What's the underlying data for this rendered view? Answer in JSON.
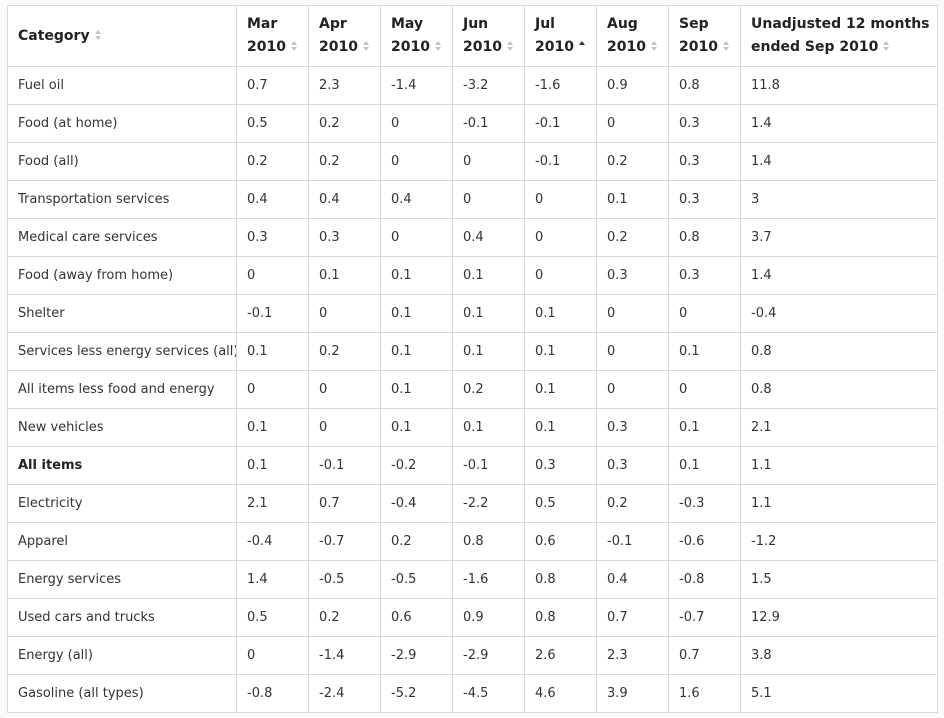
{
  "table": {
    "headers": [
      {
        "line1": "Category",
        "line2": "",
        "sort": "none"
      },
      {
        "line1": "Mar",
        "line2": "2010",
        "sort": "none"
      },
      {
        "line1": "Apr",
        "line2": "2010",
        "sort": "none"
      },
      {
        "line1": "May",
        "line2": "2010",
        "sort": "none"
      },
      {
        "line1": "Jun",
        "line2": "2010",
        "sort": "none"
      },
      {
        "line1": "Jul",
        "line2": "2010",
        "sort": "asc"
      },
      {
        "line1": "Aug",
        "line2": "2010",
        "sort": "none"
      },
      {
        "line1": "Sep",
        "line2": "2010",
        "sort": "none"
      },
      {
        "line1": "Unadjusted 12 months",
        "line2": "ended Sep 2010",
        "sort": "none"
      }
    ],
    "rows": [
      {
        "bold": false,
        "cells": [
          "Fuel oil",
          "0.7",
          "2.3",
          "-1.4",
          "-3.2",
          "-1.6",
          "0.9",
          "0.8",
          "11.8"
        ]
      },
      {
        "bold": false,
        "cells": [
          "Food (at home)",
          "0.5",
          "0.2",
          "0",
          "-0.1",
          "-0.1",
          "0",
          "0.3",
          "1.4"
        ]
      },
      {
        "bold": false,
        "cells": [
          "Food (all)",
          "0.2",
          "0.2",
          "0",
          "0",
          "-0.1",
          "0.2",
          "0.3",
          "1.4"
        ]
      },
      {
        "bold": false,
        "cells": [
          "Transportation services",
          "0.4",
          "0.4",
          "0.4",
          "0",
          "0",
          "0.1",
          "0.3",
          "3"
        ]
      },
      {
        "bold": false,
        "cells": [
          "Medical care services",
          "0.3",
          "0.3",
          "0",
          "0.4",
          "0",
          "0.2",
          "0.8",
          "3.7"
        ]
      },
      {
        "bold": false,
        "cells": [
          "Food (away from home)",
          "0",
          "0.1",
          "0.1",
          "0.1",
          "0",
          "0.3",
          "0.3",
          "1.4"
        ]
      },
      {
        "bold": false,
        "cells": [
          "Shelter",
          "-0.1",
          "0",
          "0.1",
          "0.1",
          "0.1",
          "0",
          "0",
          "-0.4"
        ]
      },
      {
        "bold": false,
        "cells": [
          "Services less energy services (all)",
          "0.1",
          "0.2",
          "0.1",
          "0.1",
          "0.1",
          "0",
          "0.1",
          "0.8"
        ]
      },
      {
        "bold": false,
        "cells": [
          "All items less food and energy",
          "0",
          "0",
          "0.1",
          "0.2",
          "0.1",
          "0",
          "0",
          "0.8"
        ]
      },
      {
        "bold": false,
        "cells": [
          "New vehicles",
          "0.1",
          "0",
          "0.1",
          "0.1",
          "0.1",
          "0.3",
          "0.1",
          "2.1"
        ]
      },
      {
        "bold": true,
        "cells": [
          "All items",
          "0.1",
          "-0.1",
          "-0.2",
          "-0.1",
          "0.3",
          "0.3",
          "0.1",
          "1.1"
        ]
      },
      {
        "bold": false,
        "cells": [
          "Electricity",
          "2.1",
          "0.7",
          "-0.4",
          "-2.2",
          "0.5",
          "0.2",
          "-0.3",
          "1.1"
        ]
      },
      {
        "bold": false,
        "cells": [
          "Apparel",
          "-0.4",
          "-0.7",
          "0.2",
          "0.8",
          "0.6",
          "-0.1",
          "-0.6",
          "-1.2"
        ]
      },
      {
        "bold": false,
        "cells": [
          "Energy services",
          "1.4",
          "-0.5",
          "-0.5",
          "-1.6",
          "0.8",
          "0.4",
          "-0.8",
          "1.5"
        ]
      },
      {
        "bold": false,
        "cells": [
          "Used cars and trucks",
          "0.5",
          "0.2",
          "0.6",
          "0.9",
          "0.8",
          "0.7",
          "-0.7",
          "12.9"
        ]
      },
      {
        "bold": false,
        "cells": [
          "Energy (all)",
          "0",
          "-1.4",
          "-2.9",
          "-2.9",
          "2.6",
          "2.3",
          "0.7",
          "3.8"
        ]
      },
      {
        "bold": false,
        "cells": [
          "Gasoline (all types)",
          "-0.8",
          "-2.4",
          "-5.2",
          "-4.5",
          "4.6",
          "3.9",
          "1.6",
          "5.1"
        ]
      }
    ]
  }
}
